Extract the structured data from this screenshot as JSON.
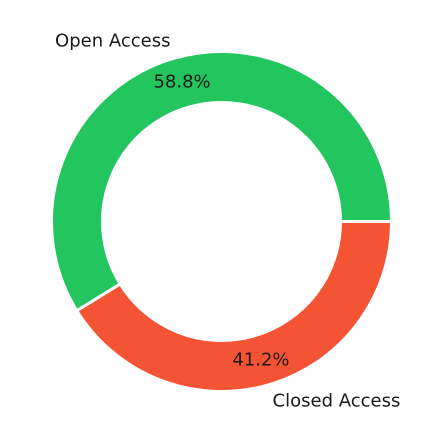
{
  "chart_data": {
    "type": "pie",
    "style": "donut",
    "slices": [
      {
        "label": "Open Access",
        "value": 58.8,
        "display": "58.8%",
        "color": "#22c55e"
      },
      {
        "label": "Closed Access",
        "value": 41.2,
        "display": "41.2%",
        "color": "#f45434"
      }
    ]
  }
}
